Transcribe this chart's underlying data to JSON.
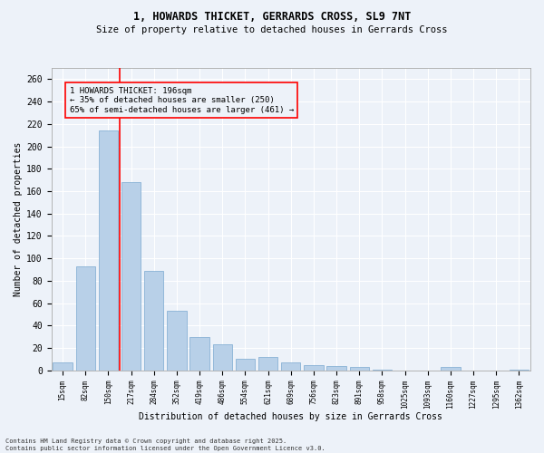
{
  "title1": "1, HOWARDS THICKET, GERRARDS CROSS, SL9 7NT",
  "title2": "Size of property relative to detached houses in Gerrards Cross",
  "xlabel": "Distribution of detached houses by size in Gerrards Cross",
  "ylabel": "Number of detached properties",
  "categories": [
    "15sqm",
    "82sqm",
    "150sqm",
    "217sqm",
    "284sqm",
    "352sqm",
    "419sqm",
    "486sqm",
    "554sqm",
    "621sqm",
    "689sqm",
    "756sqm",
    "823sqm",
    "891sqm",
    "958sqm",
    "1025sqm",
    "1093sqm",
    "1160sqm",
    "1227sqm",
    "1295sqm",
    "1362sqm"
  ],
  "values": [
    7,
    93,
    214,
    168,
    89,
    53,
    30,
    23,
    10,
    12,
    7,
    5,
    4,
    3,
    1,
    0,
    0,
    3,
    0,
    0,
    1
  ],
  "bar_color": "#b8d0e8",
  "bar_edgecolor": "#7aa8d0",
  "vline_x_index": 2,
  "vline_color": "red",
  "annotation_text": "1 HOWARDS THICKET: 196sqm\n← 35% of detached houses are smaller (250)\n65% of semi-detached houses are larger (461) →",
  "annotation_box_color": "red",
  "annotation_fontsize": 6.5,
  "bg_color": "#edf2f9",
  "grid_color": "#ffffff",
  "footnote": "Contains HM Land Registry data © Crown copyright and database right 2025.\nContains public sector information licensed under the Open Government Licence v3.0.",
  "ylim": [
    0,
    270
  ],
  "yticks": [
    0,
    20,
    40,
    60,
    80,
    100,
    120,
    140,
    160,
    180,
    200,
    220,
    240,
    260
  ],
  "title1_fontsize": 8.5,
  "title2_fontsize": 7.5,
  "xlabel_fontsize": 7.0,
  "ylabel_fontsize": 7.0,
  "xtick_fontsize": 5.5,
  "ytick_fontsize": 7.0,
  "footnote_fontsize": 5.0
}
